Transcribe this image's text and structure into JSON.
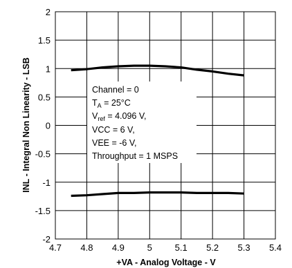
{
  "chart_data": {
    "type": "line",
    "xlabel": "+VA - Analog Voltage - V",
    "ylabel": "INL - Integral Non Linearity - LSB",
    "xlim": [
      4.7,
      5.4
    ],
    "ylim": [
      -2,
      2
    ],
    "x_ticks": [
      "4.7",
      "4.8",
      "4.9",
      "5",
      "5.1",
      "5.2",
      "5.3",
      "5.4"
    ],
    "y_ticks": [
      "-2",
      "-1.5",
      "-1",
      "-0.5",
      "0",
      "0.5",
      "1",
      "1.5",
      "2"
    ],
    "grid": true,
    "series": [
      {
        "x": [
          4.75,
          4.8,
          4.85,
          4.9,
          4.95,
          5.0,
          5.05,
          5.1,
          5.15,
          5.2,
          5.25,
          5.3
        ],
        "values": [
          0.97,
          0.99,
          1.02,
          1.04,
          1.05,
          1.05,
          1.04,
          1.02,
          0.98,
          0.95,
          0.91,
          0.88
        ],
        "color": "#000000"
      },
      {
        "x": [
          4.75,
          4.8,
          4.85,
          4.9,
          4.95,
          5.0,
          5.05,
          5.1,
          5.15,
          5.2,
          5.25,
          5.3
        ],
        "values": [
          -1.24,
          -1.23,
          -1.21,
          -1.19,
          -1.19,
          -1.18,
          -1.18,
          -1.18,
          -1.19,
          -1.19,
          -1.19,
          -1.2
        ],
        "color": "#000000"
      }
    ],
    "annotation": {
      "line1": "Channel = 0",
      "line2_main": "T",
      "line2_sub": "A",
      "line2_rest": " = 25°C",
      "line3_main": "V",
      "line3_sub": "ref",
      "line3_rest": " = 4.096 V,",
      "line4": "VCC = 6 V,",
      "line5": "VEE = -6 V,",
      "line6": "Throughput = 1 MSPS"
    }
  }
}
